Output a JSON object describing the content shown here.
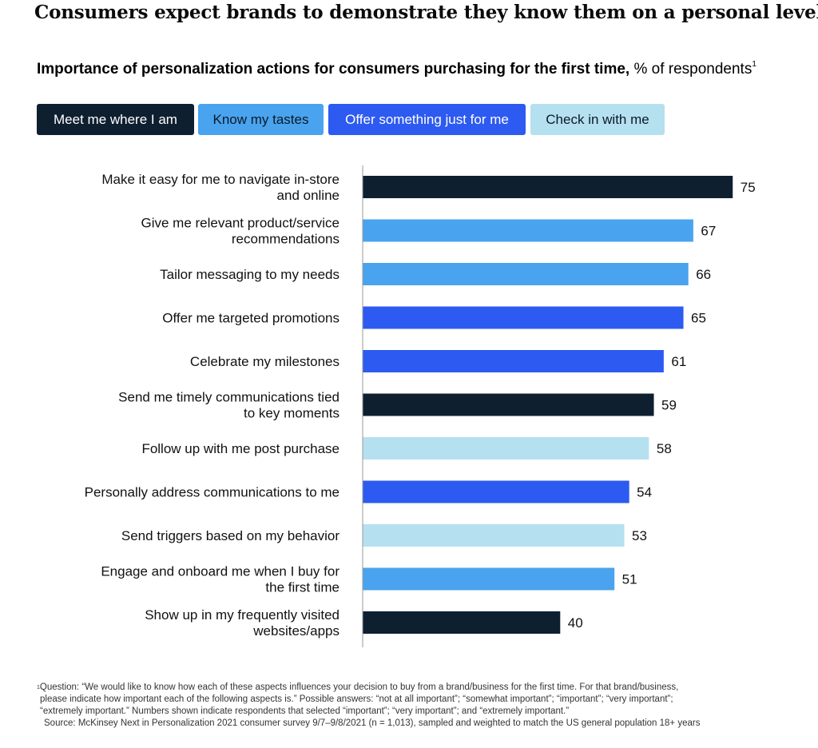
{
  "headline": "Consumers expect brands to demonstrate they know them on a personal level.",
  "subtitle": {
    "bold": "Importance of personalization actions for consumers purchasing for the first time,",
    "normal": " % of respondents",
    "sup": "1"
  },
  "legend": [
    {
      "label": "Meet me where I am",
      "color": "#0e1f30",
      "text_color": "#ffffff"
    },
    {
      "label": "Know my tastes",
      "color": "#4aa3ee",
      "text_color": "#0a1a2a"
    },
    {
      "label": "Offer something just for me",
      "color": "#2d5af0",
      "text_color": "#ffffff"
    },
    {
      "label": "Check in with me",
      "color": "#b5e0ef",
      "text_color": "#0a1a2a"
    }
  ],
  "chart_data": {
    "type": "bar",
    "orientation": "horizontal",
    "title": "Importance of personalization actions for consumers purchasing for the first time",
    "xlabel": "% of respondents",
    "ylabel": "",
    "xlim": [
      0,
      80
    ],
    "grid": false,
    "categories": [
      [
        "Make it easy for me to navigate in-store",
        "and online"
      ],
      [
        "Give me relevant product/service",
        "recommendations"
      ],
      [
        "Tailor messaging to my needs"
      ],
      [
        "Offer me targeted promotions"
      ],
      [
        "Celebrate my milestones"
      ],
      [
        "Send me timely communications tied",
        "to key moments"
      ],
      [
        "Follow up with me post purchase"
      ],
      [
        "Personally address communications to me"
      ],
      [
        "Send triggers based on my behavior"
      ],
      [
        "Engage and onboard me when I buy for",
        "the first time"
      ],
      [
        "Show up in my frequently visited",
        "websites/apps"
      ]
    ],
    "values": [
      75,
      67,
      66,
      65,
      61,
      59,
      58,
      54,
      53,
      51,
      40
    ],
    "groups": [
      "Meet me where I am",
      "Know my tastes",
      "Know my tastes",
      "Offer something just for me",
      "Offer something just for me",
      "Meet me where I am",
      "Check in with me",
      "Offer something just for me",
      "Check in with me",
      "Know my tastes",
      "Meet me where I am"
    ]
  },
  "footnote": {
    "sup": "1",
    "question": "Question: “We would like to know how each of these aspects influences your decision to buy from a brand/business for the first time. For that brand/business,",
    "question2": "please indicate how important each of the following aspects is.” Possible answers: “not at all important”; “somewhat important”; “important”; “very important”;",
    "question3": "“extremely important.” Numbers shown indicate respondents that selected “important”; “very important”; and “extremely important.”",
    "source": "Source: McKinsey Next in Personalization 2021 consumer survey 9/7–9/8/2021 (n = 1,013), sampled and weighted to match the US general population 18+ years"
  }
}
